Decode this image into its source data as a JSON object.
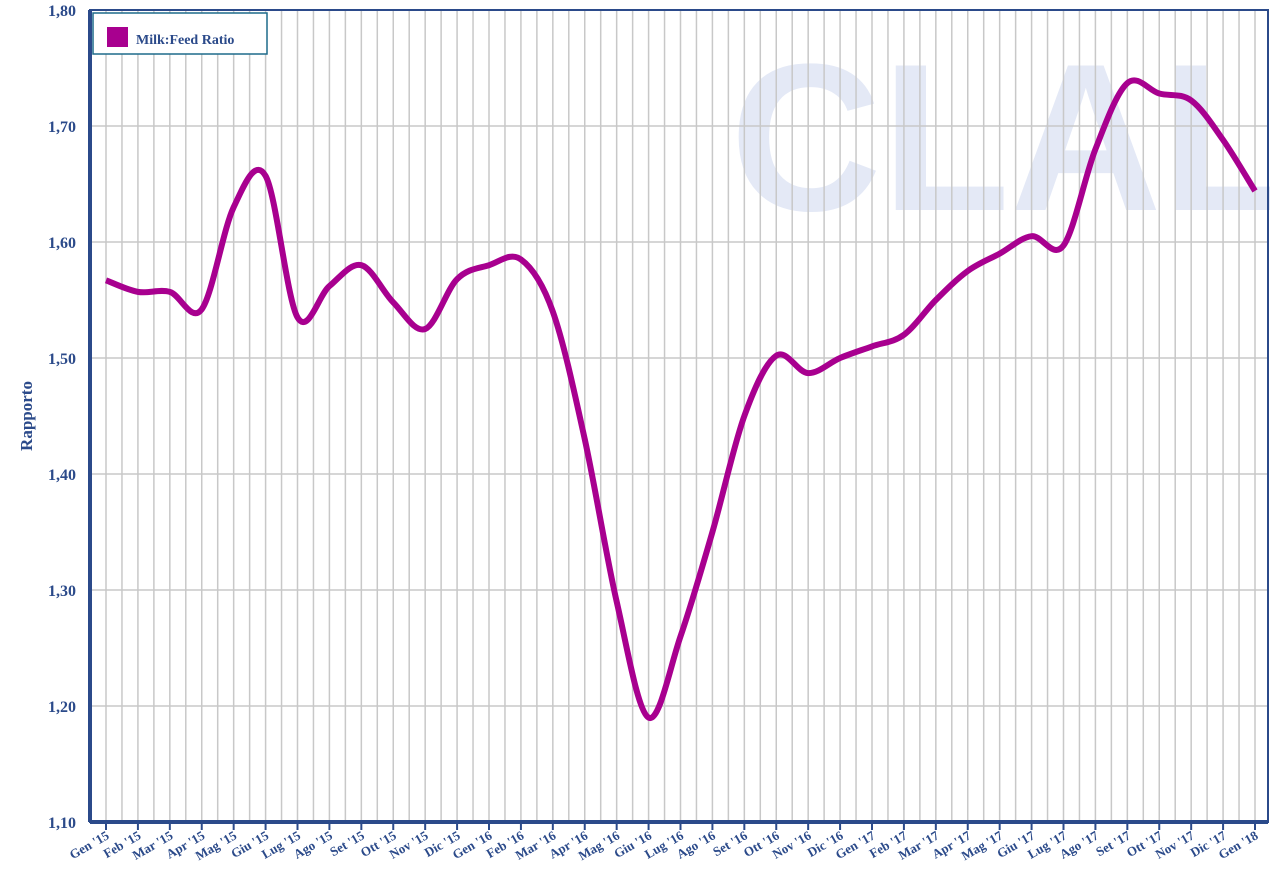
{
  "chart_data": {
    "type": "line",
    "ylabel": "Rapporto",
    "watermark": "CLAL",
    "categories": [
      "Gen '15",
      "Feb '15",
      "Mar '15",
      "Apr '15",
      "Mag '15",
      "Giu '15",
      "Lug '15",
      "Ago '15",
      "Set '15",
      "Ott '15",
      "Nov '15",
      "Dic '15",
      "Gen '16",
      "Feb '16",
      "Mar '16",
      "Apr '16",
      "Mag '16",
      "Giu '16",
      "Lug '16",
      "Ago '16",
      "Set '16",
      "Ott '16",
      "Nov '16",
      "Dic '16",
      "Gen '17",
      "Feb '17",
      "Mar '17",
      "Apr '17",
      "Mag '17",
      "Giu '17",
      "Lug '17",
      "Ago '17",
      "Set '17",
      "Ott '17",
      "Nov '17",
      "Dic '17",
      "Gen '18"
    ],
    "series": [
      {
        "name": "Milk:Feed Ratio",
        "color": "#a8008f",
        "values": [
          1.567,
          1.557,
          1.557,
          1.542,
          1.63,
          1.657,
          1.535,
          1.562,
          1.58,
          1.548,
          1.525,
          1.568,
          1.58,
          1.585,
          1.54,
          1.43,
          1.29,
          1.19,
          1.26,
          1.35,
          1.45,
          1.502,
          1.487,
          1.5,
          1.51,
          1.52,
          1.55,
          1.575,
          1.59,
          1.605,
          1.597,
          1.68,
          1.737,
          1.728,
          1.722,
          1.688,
          1.644
        ]
      }
    ],
    "ylim": [
      1.1,
      1.8
    ],
    "yticks": [
      {
        "value": 1.1,
        "label": "1,10"
      },
      {
        "value": 1.2,
        "label": "1,20"
      },
      {
        "value": 1.3,
        "label": "1,30"
      },
      {
        "value": 1.4,
        "label": "1,40"
      },
      {
        "value": 1.5,
        "label": "1,50"
      },
      {
        "value": 1.6,
        "label": "1,60"
      },
      {
        "value": 1.7,
        "label": "1,70"
      },
      {
        "value": 1.8,
        "label": "1,80"
      }
    ],
    "grid": true,
    "legend": "upper left"
  }
}
